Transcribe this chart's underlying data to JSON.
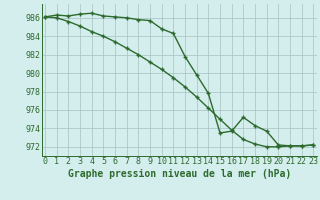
{
  "line1_x": [
    0,
    1,
    2,
    3,
    4,
    5,
    6,
    7,
    8,
    9,
    10,
    11,
    12,
    13,
    14,
    15,
    16,
    17,
    18,
    19,
    20,
    21,
    22,
    23
  ],
  "line1_y": [
    986.1,
    986.3,
    986.2,
    986.4,
    986.5,
    986.2,
    986.1,
    986.0,
    985.8,
    985.7,
    984.8,
    984.3,
    981.8,
    979.8,
    977.8,
    973.5,
    973.7,
    975.2,
    974.3,
    973.7,
    972.2,
    972.1,
    972.1,
    972.2
  ],
  "line2_x": [
    0,
    1,
    2,
    3,
    4,
    5,
    6,
    7,
    8,
    9,
    10,
    11,
    12,
    13,
    14,
    15,
    16,
    17,
    18,
    19,
    20,
    21,
    22,
    23
  ],
  "line2_y": [
    986.1,
    986.0,
    985.6,
    985.1,
    984.5,
    984.0,
    983.4,
    982.7,
    982.0,
    981.2,
    980.4,
    979.5,
    978.5,
    977.4,
    976.2,
    975.0,
    973.8,
    972.8,
    972.3,
    972.0,
    972.0,
    972.1,
    972.1,
    972.2
  ],
  "line_color": "#2d6a2d",
  "bg_color": "#d4eeee",
  "grid_color": "#aec8c8",
  "xlabel": "Graphe pression niveau de la mer (hPa)",
  "ylim": [
    971.0,
    987.5
  ],
  "yticks": [
    972,
    974,
    976,
    978,
    980,
    982,
    984,
    986
  ],
  "xticks": [
    0,
    1,
    2,
    3,
    4,
    5,
    6,
    7,
    8,
    9,
    10,
    11,
    12,
    13,
    14,
    15,
    16,
    17,
    18,
    19,
    20,
    21,
    22,
    23
  ],
  "marker": "+",
  "marker_size": 3.5,
  "line_width": 1.0,
  "xlabel_fontsize": 7.0,
  "tick_fontsize": 6.0
}
